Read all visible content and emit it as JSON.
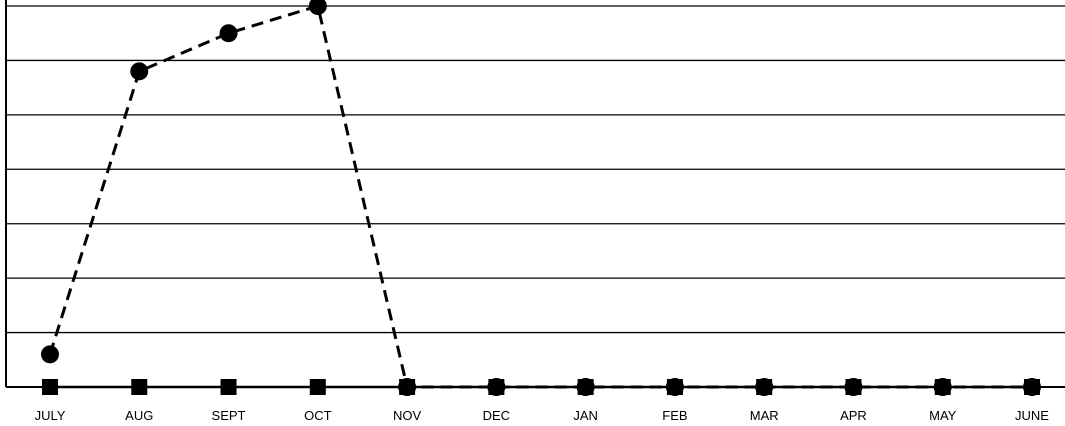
{
  "chart_data": {
    "type": "line",
    "categories": [
      "JULY",
      "AUG",
      "SEPT",
      "OCT",
      "NOV",
      "DEC",
      "JAN",
      "FEB",
      "MAR",
      "APR",
      "MAY",
      "JUNE"
    ],
    "ylim": [
      0,
      7
    ],
    "grid": true,
    "legend": "none",
    "series": [
      {
        "style": "dashed",
        "marker": "circle",
        "color": "#000000",
        "values": [
          0.6,
          5.8,
          6.5,
          7.0,
          0,
          0,
          0,
          0,
          0,
          0,
          0,
          0
        ]
      },
      {
        "style": "solid",
        "marker": "square",
        "color": "#000000",
        "values": [
          0,
          0,
          0,
          0,
          0,
          0,
          0,
          0,
          0,
          0,
          0,
          0
        ]
      }
    ]
  }
}
